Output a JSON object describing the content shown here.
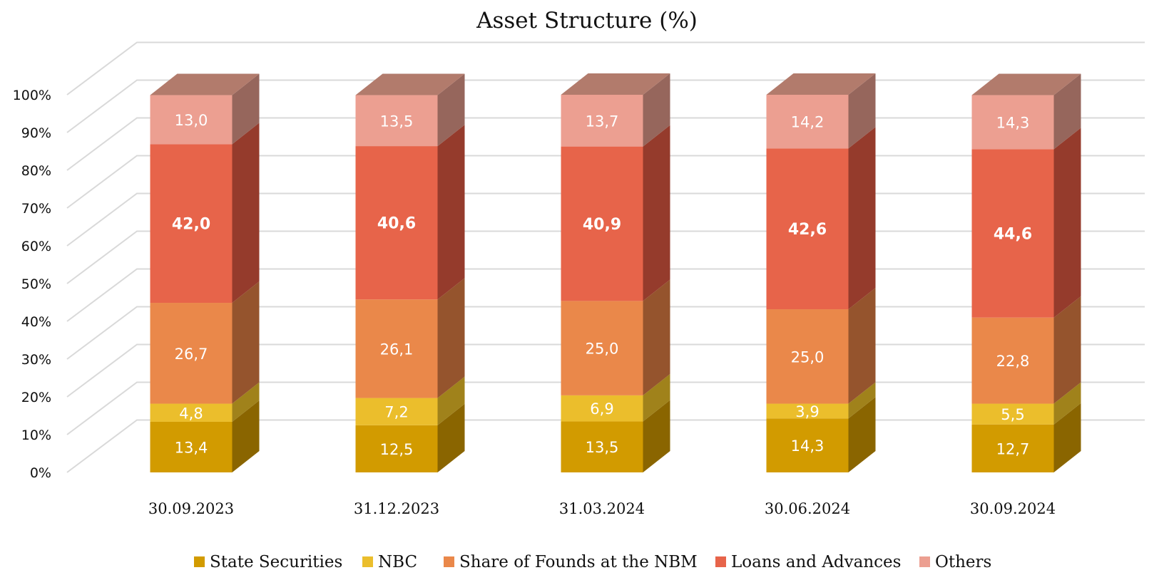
{
  "chart_data": {
    "type": "bar",
    "stacked": true,
    "percent": true,
    "three_d": true,
    "title": "Asset Structure (%)",
    "xlabel": "",
    "ylabel": "",
    "ylim": [
      0,
      100
    ],
    "yticks": [
      "0%",
      "10%",
      "20%",
      "30%",
      "40%",
      "50%",
      "60%",
      "70%",
      "80%",
      "90%",
      "100%"
    ],
    "categories": [
      "30.09.2023",
      "31.12.2023",
      "31.03.2024",
      "30.06.2024",
      "30.09.2024"
    ],
    "series": [
      {
        "name": "State Securities",
        "values": [
          13.4,
          12.5,
          13.5,
          14.3,
          12.7
        ],
        "labels": [
          "13,4",
          "12,5",
          "13,5",
          "14,3",
          "12,7"
        ],
        "colors": {
          "front": "#D29B00",
          "side": "#8A6500",
          "top": "#A87C00"
        }
      },
      {
        "name": "NBC",
        "values": [
          4.8,
          7.2,
          6.9,
          3.9,
          5.5
        ],
        "labels": [
          "4,8",
          "7,2",
          "6,9",
          "3,9",
          "5,5"
        ],
        "colors": {
          "front": "#EBBE2C",
          "side": "#A0821B",
          "top": "#C29C22"
        }
      },
      {
        "name": "Share of Founds at the NBM",
        "values": [
          26.7,
          26.1,
          25.0,
          25.0,
          22.8
        ],
        "labels": [
          "26,7",
          "26,1",
          "25,0",
          "25,0",
          "22,8"
        ],
        "colors": {
          "front": "#EA884A",
          "side": "#95542D",
          "top": "#C06F3C"
        }
      },
      {
        "name": "Loans and Advances",
        "values": [
          42.0,
          40.6,
          40.9,
          42.6,
          44.6
        ],
        "labels": [
          "42,0",
          "40,6",
          "40,9",
          "42,6",
          "44,6"
        ],
        "bold": true,
        "colors": {
          "front": "#E7644A",
          "side": "#953B2C",
          "top": "#C0503B"
        }
      },
      {
        "name": "Others",
        "values": [
          13.0,
          13.5,
          13.7,
          14.2,
          14.3
        ],
        "labels": [
          "13,0",
          "13,5",
          "13,7",
          "14,2",
          "14,3"
        ],
        "colors": {
          "front": "#EC9F91",
          "side": "#96665C",
          "top": "#B27B6C"
        }
      }
    ],
    "legend": [
      "State Securities",
      "NBC",
      "Share of Founds at the NBM",
      "Loans and Advances",
      "Others"
    ],
    "legend_position": "bottom",
    "grid": true,
    "gridline_color": "#D9D9D9"
  }
}
